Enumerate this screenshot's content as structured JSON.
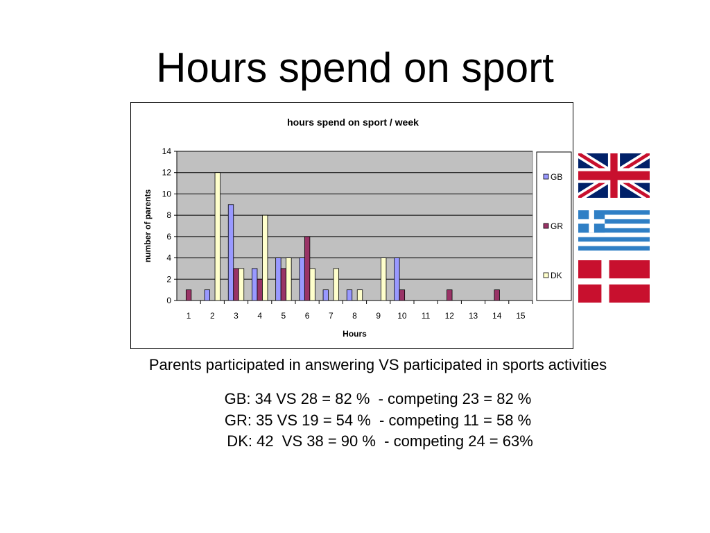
{
  "slide": {
    "title": "Hours spend on sport",
    "caption": "Parents participated in answering VS participated in sports activities",
    "stats": [
      "GB: 34 VS 28 = 82 %  - competing 23 = 82 %",
      "GR: 35 VS 19 = 54 %  - competing 11 = 58 %",
      " DK: 42  VS 38 = 90 %  - competing 24 = 63%"
    ]
  },
  "flags": [
    {
      "country": "GB",
      "icon": "uk-flag-icon"
    },
    {
      "country": "GR",
      "icon": "greece-flag-icon"
    },
    {
      "country": "DK",
      "icon": "denmark-flag-icon"
    }
  ],
  "chart_data": {
    "type": "bar",
    "title": "hours spend on sport / week",
    "xlabel": "Hours",
    "ylabel": "number of parents",
    "ylim": [
      0,
      14
    ],
    "yticks": [
      0,
      2,
      4,
      6,
      8,
      10,
      12,
      14
    ],
    "grid": true,
    "legend": "right",
    "categories": [
      "1",
      "2",
      "3",
      "4",
      "5",
      "6",
      "7",
      "8",
      "9",
      "10",
      "11",
      "12",
      "13",
      "14",
      "15"
    ],
    "series": [
      {
        "name": "GB",
        "color": "#9999ff",
        "values": [
          0,
          1,
          9,
          3,
          4,
          4,
          1,
          1,
          0,
          4,
          0,
          0,
          0,
          0,
          0
        ]
      },
      {
        "name": "GR",
        "color": "#993366",
        "values": [
          1,
          0,
          3,
          2,
          3,
          6,
          0,
          0,
          0,
          1,
          0,
          1,
          0,
          1,
          0
        ]
      },
      {
        "name": "DK",
        "color": "#ffffcc",
        "values": [
          0,
          12,
          3,
          8,
          4,
          3,
          3,
          1,
          4,
          0,
          0,
          0,
          0,
          0,
          0
        ]
      }
    ],
    "plot_background": "#c0c0c0"
  }
}
